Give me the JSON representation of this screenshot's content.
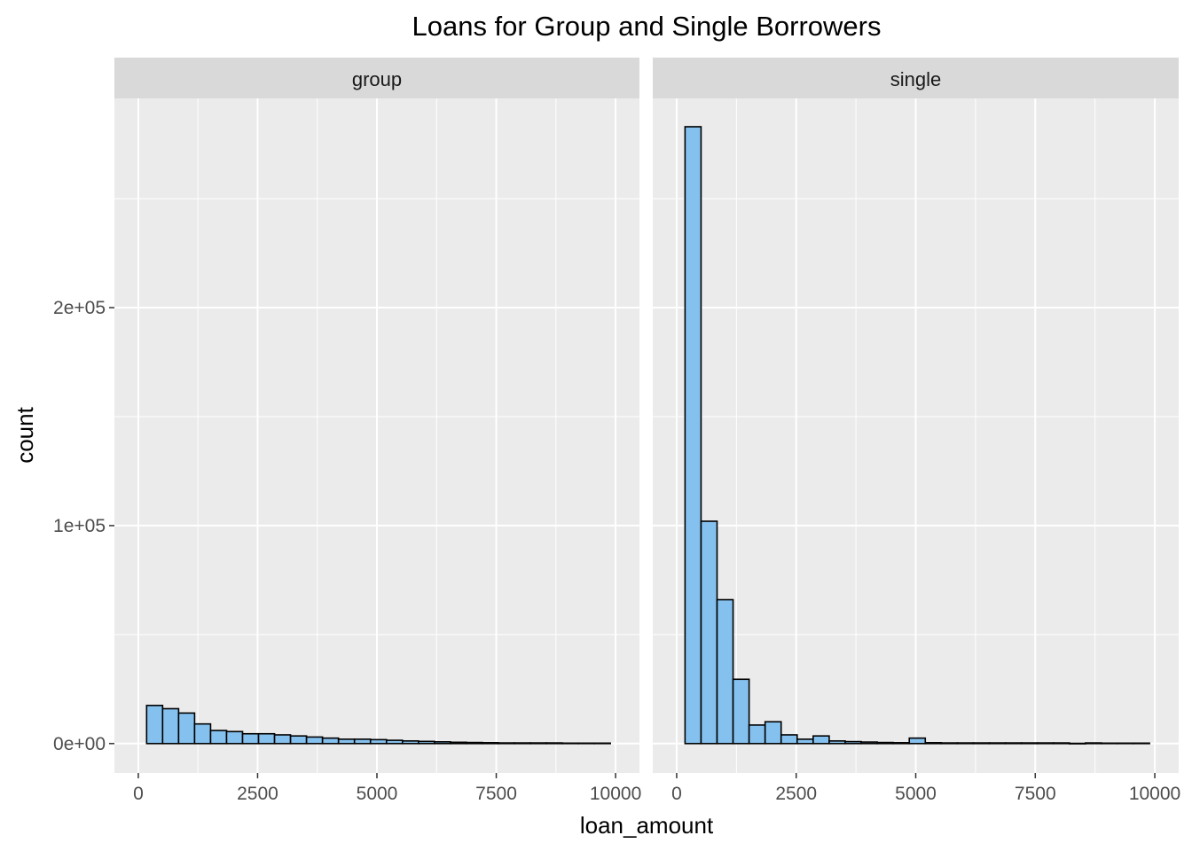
{
  "chart_data": {
    "type": "bar",
    "title": "Loans for Group and Single Borrowers",
    "xlabel": "loan_amount",
    "ylabel": "count",
    "xlim": [
      -500,
      10500
    ],
    "ylim": [
      -13500,
      296000
    ],
    "x_ticks": [
      0,
      2500,
      5000,
      7500,
      10000
    ],
    "x_tick_labels": [
      "0",
      "2500",
      "5000",
      "7500",
      "10000"
    ],
    "y_ticks": [
      0,
      100000,
      200000
    ],
    "y_tick_labels": [
      "0e+00",
      "1e+05",
      "2e+05"
    ],
    "grid": true,
    "bin_width": 335,
    "bin_starts": [
      175,
      510,
      845,
      1180,
      1515,
      1850,
      2185,
      2520,
      2855,
      3190,
      3525,
      3860,
      4195,
      4530,
      4865,
      5200,
      5535,
      5870,
      6205,
      6540,
      6875,
      7210,
      7545,
      7880,
      8215,
      8550,
      8885,
      9220,
      9555
    ],
    "fill_color": "#85C1EE",
    "edge_color": "#000000",
    "panel_background": "#EBEBEB",
    "strip_background": "#D9D9D9",
    "panels": [
      {
        "strip_label": "group",
        "values": [
          17500,
          16000,
          14000,
          9000,
          6000,
          5500,
          4500,
          4500,
          4000,
          3500,
          3000,
          2500,
          2000,
          2000,
          1800,
          1500,
          1200,
          1000,
          800,
          600,
          500,
          400,
          300,
          300,
          300,
          300,
          200,
          200,
          200
        ]
      },
      {
        "strip_label": "single",
        "values": [
          283000,
          102000,
          66000,
          29500,
          8500,
          10000,
          4000,
          2000,
          3500,
          1200,
          900,
          700,
          500,
          400,
          2500,
          400,
          300,
          300,
          300,
          300,
          300,
          300,
          300,
          300,
          100,
          300,
          200,
          200,
          200
        ]
      }
    ]
  }
}
